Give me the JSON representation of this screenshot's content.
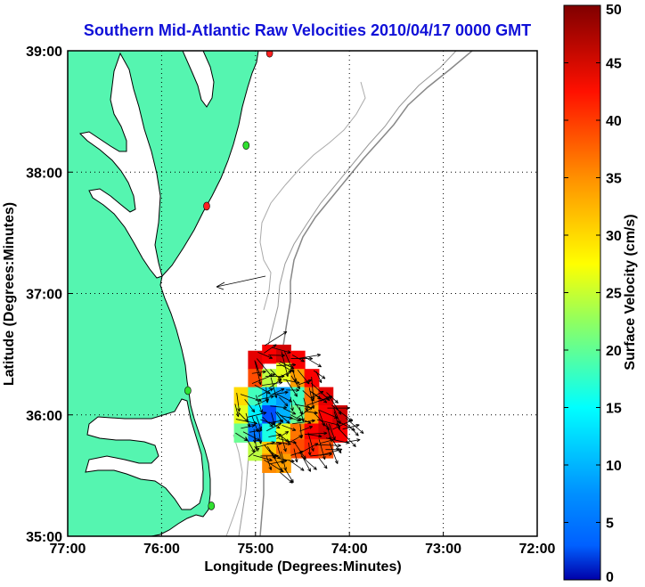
{
  "chart_data": {
    "type": "heatmap",
    "title": "Southern Mid-Atlantic Raw Velocities 2010/04/17 0000 GMT",
    "xlabel": "Longitude (Degrees:Minutes)",
    "ylabel": "Latitude (Degrees:Minutes)",
    "colorbar_label": "Surface Velocity (cm/s)",
    "xlim": [
      -77,
      -72
    ],
    "ylim": [
      35,
      39
    ],
    "clim": [
      0,
      50
    ],
    "x_ticks": [
      {
        "value": -77,
        "label": "77:00"
      },
      {
        "value": -76,
        "label": "76:00"
      },
      {
        "value": -75,
        "label": "75:00"
      },
      {
        "value": -74,
        "label": "74:00"
      },
      {
        "value": -73,
        "label": "73:00"
      },
      {
        "value": -72,
        "label": "72:00"
      }
    ],
    "y_ticks": [
      {
        "value": 35,
        "label": "35:00"
      },
      {
        "value": 36,
        "label": "36:00"
      },
      {
        "value": 37,
        "label": "37:00"
      },
      {
        "value": 38,
        "label": "38:00"
      },
      {
        "value": 39,
        "label": "39:00"
      }
    ],
    "colorbar_ticks": [
      {
        "value": 0,
        "label": "0"
      },
      {
        "value": 5,
        "label": "5"
      },
      {
        "value": 10,
        "label": "10"
      },
      {
        "value": 15,
        "label": "15"
      },
      {
        "value": 20,
        "label": "20"
      },
      {
        "value": 25,
        "label": "25"
      },
      {
        "value": 30,
        "label": "30"
      },
      {
        "value": 35,
        "label": "35"
      },
      {
        "value": 40,
        "label": "40"
      },
      {
        "value": 45,
        "label": "45"
      },
      {
        "value": 50,
        "label": "50"
      }
    ],
    "grid": true,
    "colormap": "jet",
    "colors": {
      "land": "#55f5b0",
      "coast": "#000000",
      "isobath": "#888888",
      "title": "#1010d8"
    },
    "stations": [
      {
        "lon": -74.85,
        "lat": 38.98,
        "color": "#ff2020"
      },
      {
        "lon": -75.1,
        "lat": 38.22,
        "color": "#30e030"
      },
      {
        "lon": -75.52,
        "lat": 37.72,
        "color": "#ff2020"
      },
      {
        "lon": -75.72,
        "lat": 36.2,
        "color": "#30e030"
      },
      {
        "lon": -75.47,
        "lat": 35.25,
        "color": "#30e030"
      }
    ],
    "velocity_cells": [
      {
        "lon": -75.0,
        "lat": 36.45,
        "v": 45
      },
      {
        "lon": -74.85,
        "lat": 36.5,
        "v": 44
      },
      {
        "lon": -74.7,
        "lat": 36.5,
        "v": 46
      },
      {
        "lon": -74.55,
        "lat": 36.45,
        "v": 44
      },
      {
        "lon": -75.0,
        "lat": 36.3,
        "v": 40
      },
      {
        "lon": -74.85,
        "lat": 36.3,
        "v": 28
      },
      {
        "lon": -74.7,
        "lat": 36.35,
        "v": 30
      },
      {
        "lon": -74.55,
        "lat": 36.3,
        "v": 36
      },
      {
        "lon": -74.4,
        "lat": 36.3,
        "v": 44
      },
      {
        "lon": -75.15,
        "lat": 36.15,
        "v": 33
      },
      {
        "lon": -75.0,
        "lat": 36.15,
        "v": 22
      },
      {
        "lon": -74.85,
        "lat": 36.15,
        "v": 16
      },
      {
        "lon": -74.7,
        "lat": 36.15,
        "v": 14
      },
      {
        "lon": -74.55,
        "lat": 36.15,
        "v": 22
      },
      {
        "lon": -74.4,
        "lat": 36.15,
        "v": 38
      },
      {
        "lon": -74.25,
        "lat": 36.15,
        "v": 45
      },
      {
        "lon": -75.15,
        "lat": 36.0,
        "v": 30
      },
      {
        "lon": -75.0,
        "lat": 36.0,
        "v": 18
      },
      {
        "lon": -74.85,
        "lat": 36.0,
        "v": 10
      },
      {
        "lon": -74.7,
        "lat": 36.0,
        "v": 15
      },
      {
        "lon": -74.55,
        "lat": 36.0,
        "v": 24
      },
      {
        "lon": -74.4,
        "lat": 36.0,
        "v": 36
      },
      {
        "lon": -74.25,
        "lat": 36.0,
        "v": 44
      },
      {
        "lon": -74.1,
        "lat": 36.0,
        "v": 46
      },
      {
        "lon": -75.15,
        "lat": 35.85,
        "v": 24
      },
      {
        "lon": -75.0,
        "lat": 35.85,
        "v": 12
      },
      {
        "lon": -74.85,
        "lat": 35.85,
        "v": 20
      },
      {
        "lon": -74.7,
        "lat": 35.85,
        "v": 30
      },
      {
        "lon": -74.55,
        "lat": 35.85,
        "v": 38
      },
      {
        "lon": -74.4,
        "lat": 35.85,
        "v": 44
      },
      {
        "lon": -74.25,
        "lat": 35.85,
        "v": 46
      },
      {
        "lon": -74.1,
        "lat": 35.85,
        "v": 44
      },
      {
        "lon": -75.0,
        "lat": 35.7,
        "v": 28
      },
      {
        "lon": -74.85,
        "lat": 35.7,
        "v": 34
      },
      {
        "lon": -74.7,
        "lat": 35.7,
        "v": 38
      },
      {
        "lon": -74.55,
        "lat": 35.72,
        "v": 40
      },
      {
        "lon": -74.4,
        "lat": 35.72,
        "v": 42
      },
      {
        "lon": -74.25,
        "lat": 35.72,
        "v": 40
      },
      {
        "lon": -74.85,
        "lat": 35.6,
        "v": 37
      },
      {
        "lon": -74.7,
        "lat": 35.6,
        "v": 36
      }
    ]
  }
}
